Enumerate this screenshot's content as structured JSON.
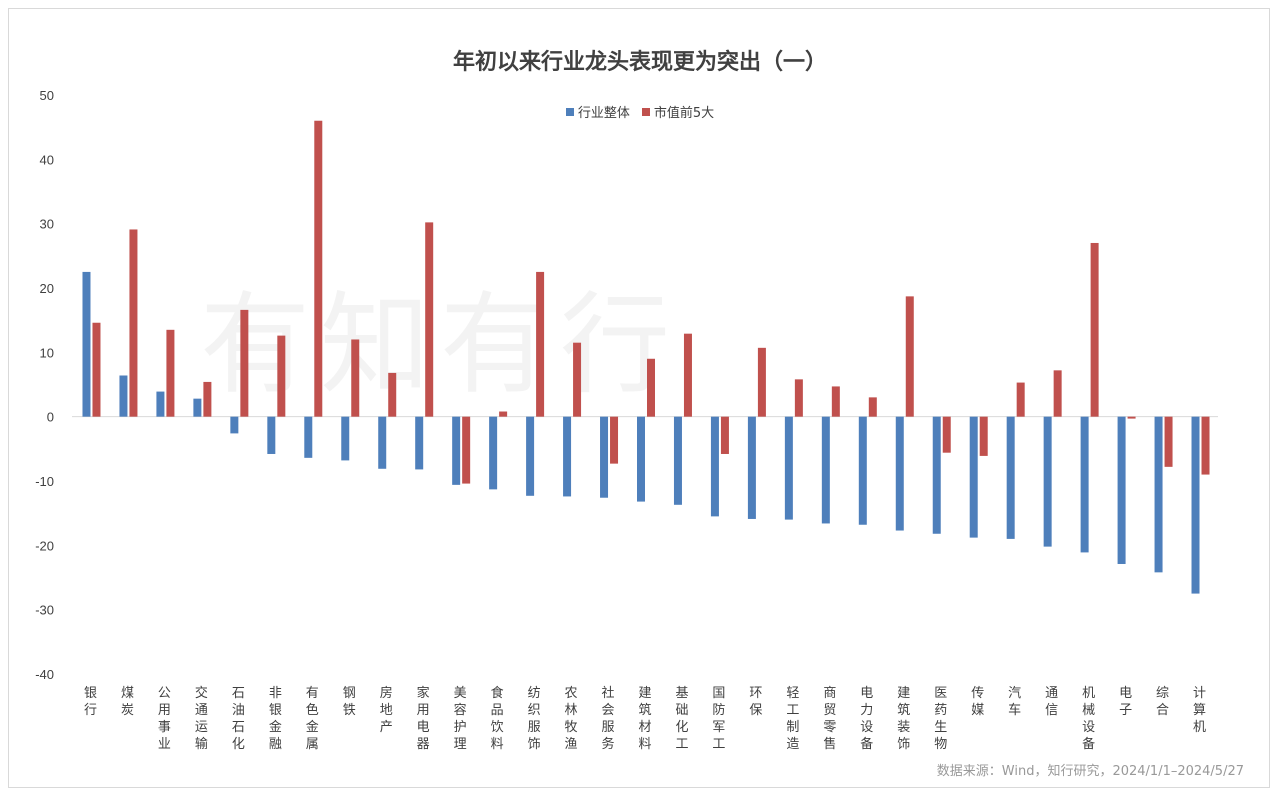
{
  "chart_data": {
    "type": "bar",
    "title": "年初以来行业龙头表现更为突出（一）",
    "xlabel": "",
    "ylabel": "",
    "ylim": [
      -40,
      50
    ],
    "yticks": [
      50,
      40,
      30,
      20,
      10,
      0,
      -10,
      -20,
      -30,
      -40
    ],
    "grid": false,
    "legend_position": "top-center",
    "categories": [
      "银行",
      "煤炭",
      "公用事业",
      "交通运输",
      "石油石化",
      "非银金融",
      "有色金属",
      "钢铁",
      "房地产",
      "家用电器",
      "美容护理",
      "食品饮料",
      "纺织服饰",
      "农林牧渔",
      "社会服务",
      "建筑材料",
      "基础化工",
      "国防军工",
      "环保",
      "轻工制造",
      "商贸零售",
      "电力设备",
      "建筑装饰",
      "医药生物",
      "传媒",
      "汽车",
      "通信",
      "机械设备",
      "电子",
      "综合",
      "计算机"
    ],
    "series": [
      {
        "name": "行业整体",
        "color": "#4e7fbb",
        "values": [
          22.5,
          6.4,
          3.9,
          2.8,
          -2.6,
          -5.8,
          -6.4,
          -6.8,
          -8.1,
          -8.2,
          -10.6,
          -11.3,
          -12.3,
          -12.4,
          -12.6,
          -13.2,
          -13.7,
          -15.5,
          -15.9,
          -16.0,
          -16.6,
          -16.8,
          -17.7,
          -18.2,
          -18.8,
          -19.0,
          -20.2,
          -21.1,
          -22.9,
          -24.2,
          -27.5
        ]
      },
      {
        "name": "市值前5大",
        "color": "#c0504d",
        "values": [
          14.6,
          29.1,
          13.5,
          5.4,
          16.6,
          12.6,
          46.0,
          12.0,
          6.8,
          30.2,
          -10.4,
          0.8,
          22.5,
          11.5,
          -7.3,
          9.0,
          12.9,
          -5.8,
          10.7,
          5.8,
          4.7,
          3.0,
          18.7,
          -5.6,
          -6.1,
          5.3,
          7.2,
          27.0,
          -0.3,
          -7.8,
          -9.0
        ]
      }
    ]
  },
  "watermark": "有知有行",
  "source": "数据来源：Wind，知行研究，2024/1/1–2024/5/27"
}
